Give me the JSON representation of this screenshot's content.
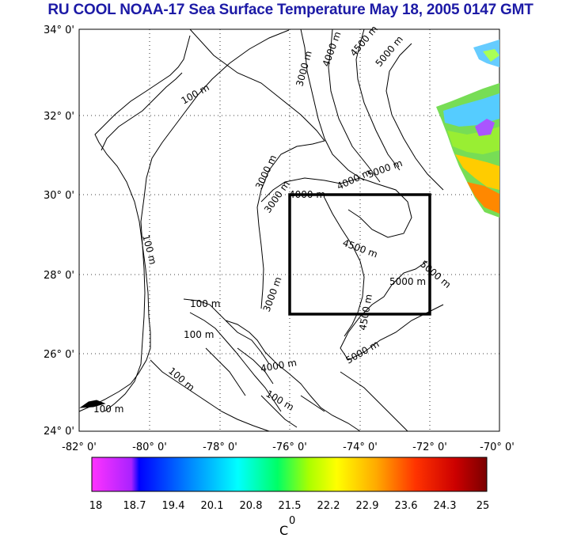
{
  "title": "RU COOL  NOAA-17 Sea Surface Temperature May 18, 2005 0147 GMT",
  "map": {
    "lon_range": [
      -82,
      -70
    ],
    "lat_range": [
      24,
      34
    ],
    "lat_ticks": [
      "34° 0'",
      "32° 0'",
      "30° 0'",
      "28° 0'",
      "26° 0'",
      "24° 0'"
    ],
    "lon_ticks": [
      "-82° 0'",
      "-80° 0'",
      "-78° 0'",
      "-76° 0'",
      "-74° 0'",
      "-72° 0'",
      "-70° 0'"
    ],
    "grid": "dotted",
    "study_box": {
      "lon": [
        -76,
        -72
      ],
      "lat": [
        27,
        30
      ]
    },
    "contour_labels": [
      "100 m",
      "100 m",
      "100 m",
      "100 m",
      "100 m",
      "100 m",
      "100 m",
      "3000 m",
      "4000 m",
      "4500 m",
      "5000 m",
      "3000 m",
      "3000 m",
      "4000 m",
      "4000 m",
      "5000 m",
      "4500 m",
      "5000 m",
      "5000 m",
      "4500 m",
      "5000 m",
      "3000 m",
      "4000 m"
    ]
  },
  "colorbar": {
    "tick_labels": [
      "18",
      "18.7",
      "19.4",
      "20.1",
      "20.8",
      "21.5",
      "22.2",
      "22.9",
      "23.6",
      "24.3",
      "25"
    ],
    "unit": "C",
    "unit_superscript": "0",
    "colors": [
      "#ff33ff",
      "#0000ff",
      "#00aaff",
      "#00ffff",
      "#00ff66",
      "#aaff00",
      "#ffff00",
      "#ffaa00",
      "#ff3300",
      "#cc0000",
      "#7a0000"
    ]
  }
}
